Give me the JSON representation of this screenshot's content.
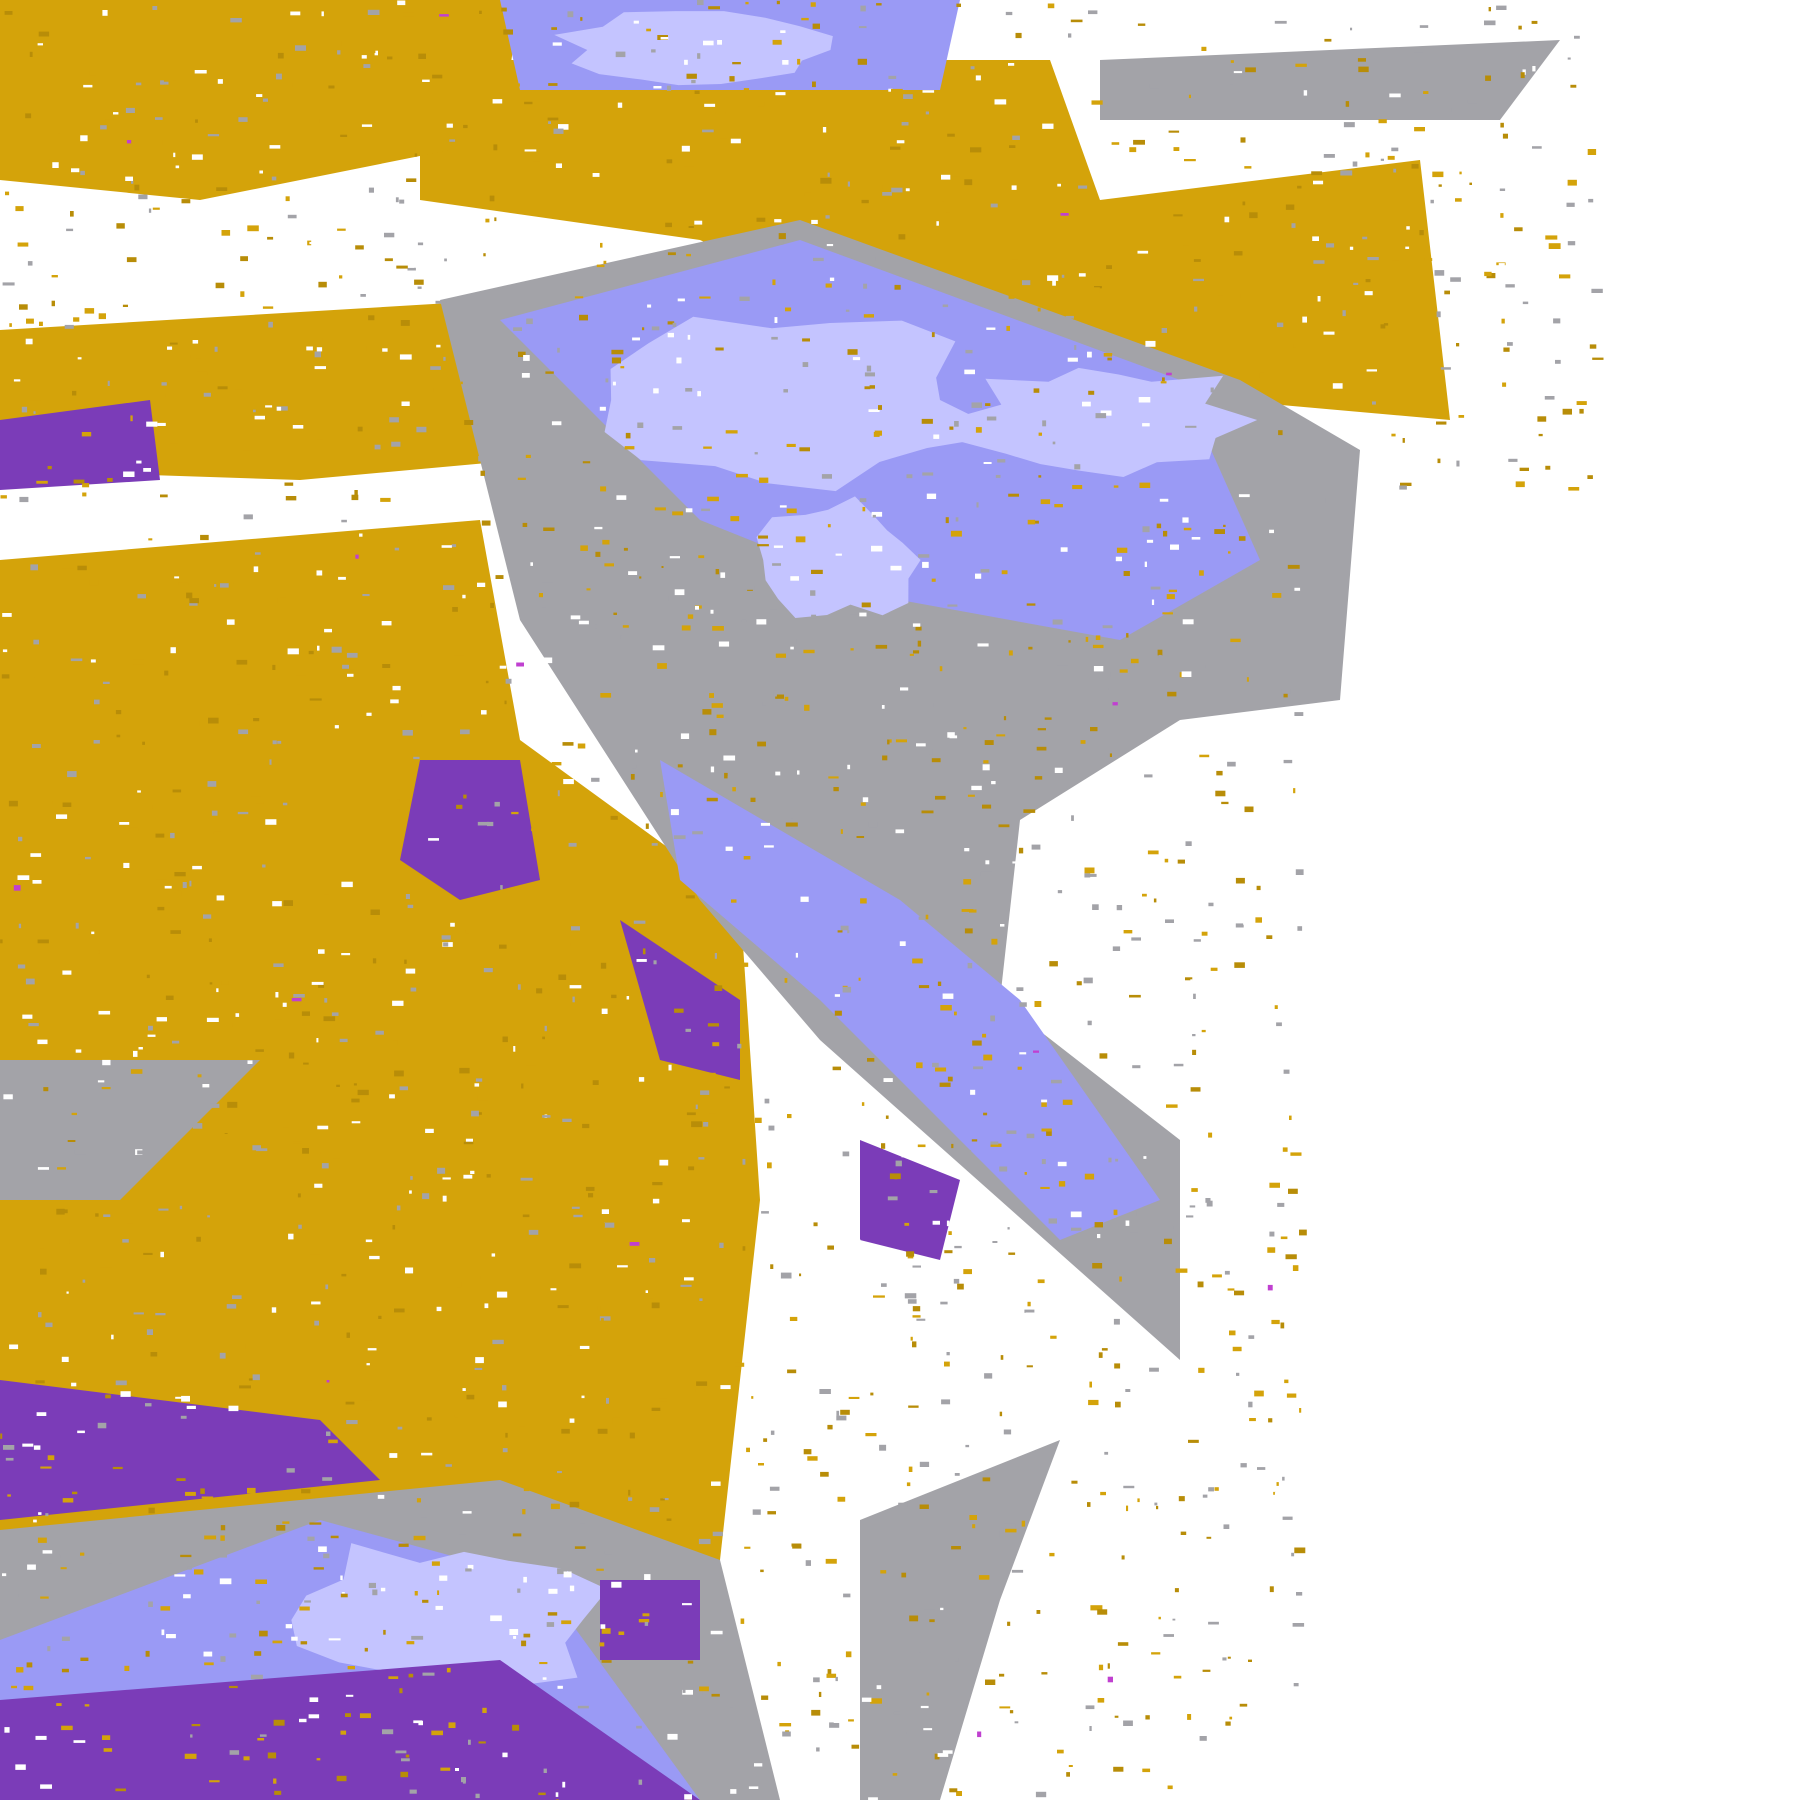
{
  "map": {
    "legend_text": "",
    "class_colors": {
      "background": "#ffffff",
      "gold": "#d4a30a",
      "dark_gold": "#b88d08",
      "purple": "#7b3cb8",
      "magenta": "#c040d0",
      "lavender": "#c4c4ff",
      "periwinkle": "#9a9af5",
      "gray": "#a3a3a8",
      "dark_gray": "#8a8a90"
    }
  }
}
